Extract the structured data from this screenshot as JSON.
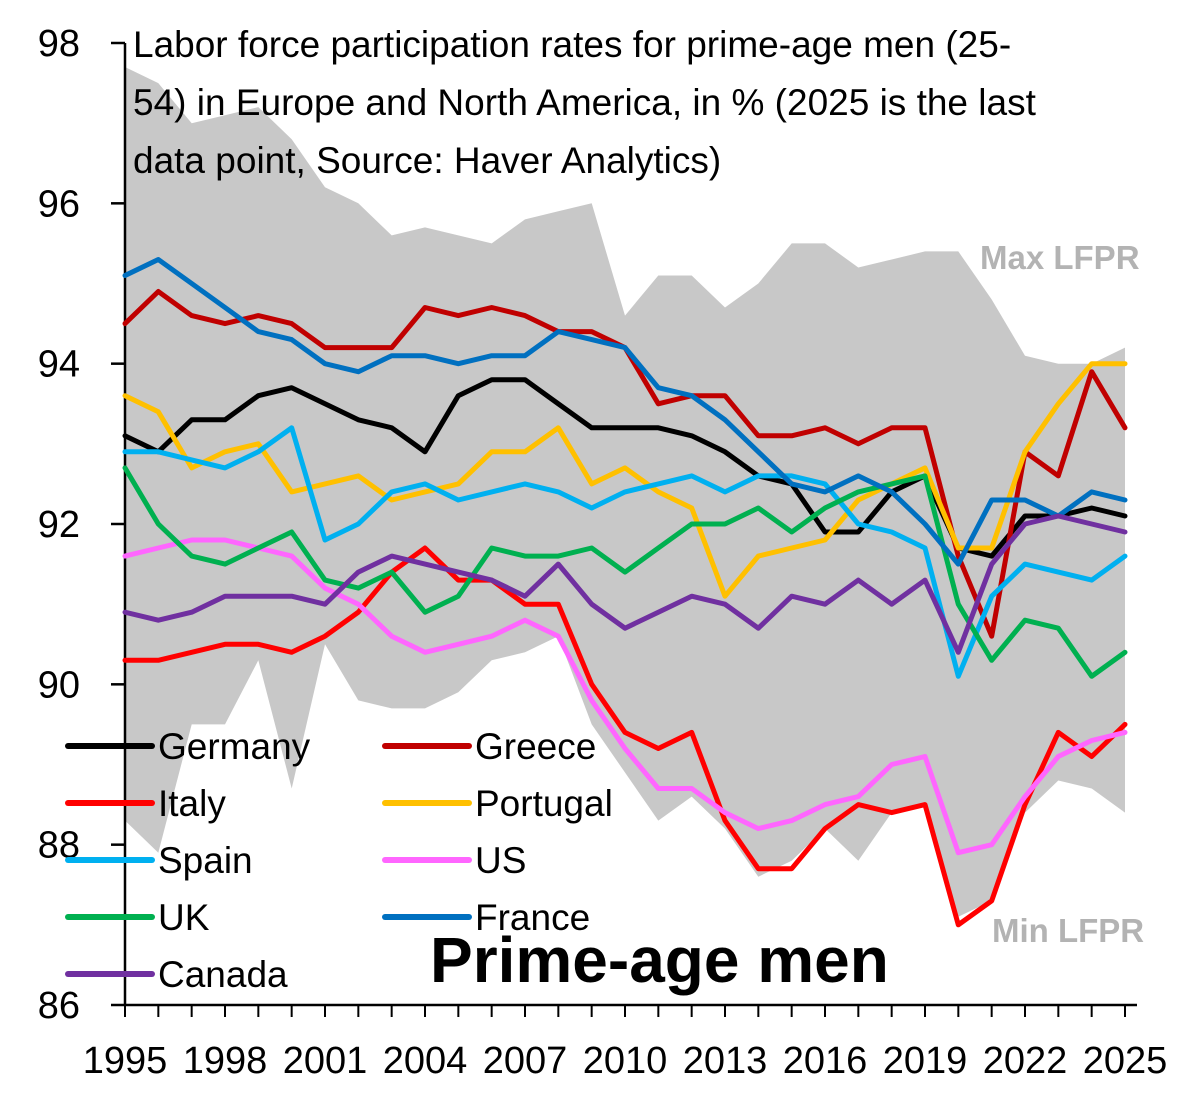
{
  "chart_data": {
    "type": "line",
    "title_lines": [
      "Labor force participation rates for prime-age men (25-",
      "54) in Europe and North America, in % (2025 is the last",
      "data point, Source: Haver Analytics)"
    ],
    "x": [
      1995,
      1996,
      1997,
      1998,
      1999,
      2000,
      2001,
      2002,
      2003,
      2004,
      2005,
      2006,
      2007,
      2008,
      2009,
      2010,
      2011,
      2012,
      2013,
      2014,
      2015,
      2016,
      2017,
      2018,
      2019,
      2020,
      2021,
      2022,
      2023,
      2024,
      2025
    ],
    "x_tick_labels": [
      "1995",
      "1998",
      "2001",
      "2004",
      "2007",
      "2010",
      "2013",
      "2016",
      "2019",
      "2022",
      "2025"
    ],
    "y_tick_labels": [
      "86",
      "88",
      "90",
      "92",
      "94",
      "96",
      "98"
    ],
    "ylim": [
      86,
      98
    ],
    "series": [
      {
        "name": "Germany",
        "color": "#000000",
        "values": [
          93.1,
          92.9,
          93.3,
          93.3,
          93.6,
          93.7,
          93.5,
          93.3,
          93.2,
          92.9,
          93.6,
          93.8,
          93.8,
          93.5,
          93.2,
          93.2,
          93.2,
          93.1,
          92.9,
          92.6,
          92.5,
          91.9,
          91.9,
          92.4,
          92.6,
          91.7,
          91.6,
          92.1,
          92.1,
          92.2,
          92.1
        ]
      },
      {
        "name": "Greece",
        "color": "#c00000",
        "values": [
          94.5,
          94.9,
          94.6,
          94.5,
          94.6,
          94.5,
          94.2,
          94.2,
          94.2,
          94.7,
          94.6,
          94.7,
          94.6,
          94.4,
          94.4,
          94.2,
          93.5,
          93.6,
          93.6,
          93.1,
          93.1,
          93.2,
          93.0,
          93.2,
          93.2,
          91.6,
          90.6,
          92.9,
          92.6,
          93.9,
          93.2
        ]
      },
      {
        "name": "Italy",
        "color": "#ff0000",
        "values": [
          90.3,
          90.3,
          90.4,
          90.5,
          90.5,
          90.4,
          90.6,
          90.9,
          91.4,
          91.7,
          91.3,
          91.3,
          91.0,
          91.0,
          90.0,
          89.4,
          89.2,
          89.4,
          88.3,
          87.7,
          87.7,
          88.2,
          88.5,
          88.4,
          88.5,
          87.0,
          87.3,
          88.5,
          89.4,
          89.1,
          89.5
        ]
      },
      {
        "name": "Portugal",
        "color": "#ffc000",
        "values": [
          93.6,
          93.4,
          92.7,
          92.9,
          93.0,
          92.4,
          92.5,
          92.6,
          92.3,
          92.4,
          92.5,
          92.9,
          92.9,
          93.2,
          92.5,
          92.7,
          92.4,
          92.2,
          91.1,
          91.6,
          91.7,
          91.8,
          92.3,
          92.5,
          92.7,
          91.7,
          91.7,
          92.9,
          93.5,
          94.0,
          94.0
        ]
      },
      {
        "name": "Spain",
        "color": "#00b0f0",
        "values": [
          92.9,
          92.9,
          92.8,
          92.7,
          92.9,
          93.2,
          91.8,
          92.0,
          92.4,
          92.5,
          92.3,
          92.4,
          92.5,
          92.4,
          92.2,
          92.4,
          92.5,
          92.6,
          92.4,
          92.6,
          92.6,
          92.5,
          92.0,
          91.9,
          91.7,
          90.1,
          91.1,
          91.5,
          91.4,
          91.3,
          91.6
        ]
      },
      {
        "name": "US",
        "color": "#ff66ff",
        "values": [
          91.6,
          91.7,
          91.8,
          91.8,
          91.7,
          91.6,
          91.2,
          91.0,
          90.6,
          90.4,
          90.5,
          90.6,
          90.8,
          90.6,
          89.8,
          89.2,
          88.7,
          88.7,
          88.4,
          88.2,
          88.3,
          88.5,
          88.6,
          89.0,
          89.1,
          87.9,
          88.0,
          88.6,
          89.1,
          89.3,
          89.4
        ]
      },
      {
        "name": "UK",
        "color": "#00b050",
        "values": [
          92.7,
          92.0,
          91.6,
          91.5,
          91.7,
          91.9,
          91.3,
          91.2,
          91.4,
          90.9,
          91.1,
          91.7,
          91.6,
          91.6,
          91.7,
          91.4,
          91.7,
          92.0,
          92.0,
          92.2,
          91.9,
          92.2,
          92.4,
          92.5,
          92.6,
          91.0,
          90.3,
          90.8,
          90.7,
          90.1,
          90.4
        ]
      },
      {
        "name": "France",
        "color": "#0070c0",
        "values": [
          95.1,
          95.3,
          95.0,
          94.7,
          94.4,
          94.3,
          94.0,
          93.9,
          94.1,
          94.1,
          94.0,
          94.1,
          94.1,
          94.4,
          94.3,
          94.2,
          93.7,
          93.6,
          93.3,
          92.9,
          92.5,
          92.4,
          92.6,
          92.4,
          92.0,
          91.5,
          92.3,
          92.3,
          92.1,
          92.4,
          92.3
        ]
      },
      {
        "name": "Canada",
        "color": "#7030a0",
        "values": [
          90.9,
          90.8,
          90.9,
          91.1,
          91.1,
          91.1,
          91.0,
          91.4,
          91.6,
          91.5,
          91.4,
          91.3,
          91.1,
          91.5,
          91.0,
          90.7,
          90.9,
          91.1,
          91.0,
          90.7,
          91.1,
          91.0,
          91.3,
          91.0,
          91.3,
          90.4,
          91.5,
          92.0,
          92.1,
          92.0,
          91.9
        ]
      }
    ],
    "band": {
      "color": "#c8c8c8",
      "max_label": "Max LFPR",
      "min_label": "Min LFPR",
      "max": [
        97.7,
        97.5,
        97.0,
        97.1,
        97.2,
        96.8,
        96.2,
        96.0,
        95.6,
        95.7,
        95.6,
        95.5,
        95.8,
        95.9,
        96.0,
        94.6,
        95.1,
        95.1,
        94.7,
        95.0,
        95.5,
        95.5,
        95.2,
        95.3,
        95.4,
        95.4,
        94.8,
        94.1,
        94.0,
        94.0,
        94.2
      ],
      "min": [
        88.3,
        87.9,
        89.5,
        89.5,
        90.3,
        88.7,
        90.5,
        89.8,
        89.7,
        89.7,
        89.9,
        90.3,
        90.4,
        90.6,
        89.5,
        88.9,
        88.3,
        88.6,
        88.2,
        87.6,
        87.8,
        88.2,
        87.8,
        88.4,
        88.5,
        87.1,
        87.3,
        88.4,
        88.8,
        88.7,
        88.4
      ]
    },
    "legend_order": [
      "Germany",
      "Greece",
      "Italy",
      "Portugal",
      "Spain",
      "US",
      "UK",
      "France",
      "Canada"
    ],
    "annotation": "Prime-age men",
    "grid": false,
    "legend_position": "bottom-left"
  }
}
